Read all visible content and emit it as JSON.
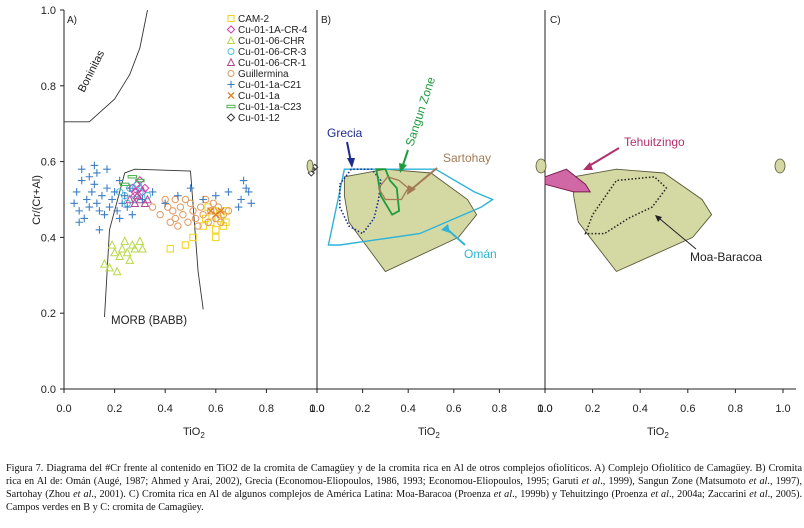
{
  "chart_data": [
    {
      "panel": "A)",
      "type": "scatter",
      "xlabel": "TiO2",
      "ylabel": "Cr/(Cr+Al)",
      "xlim": [
        0.0,
        1.0
      ],
      "ylim": [
        0.0,
        1.0
      ],
      "x_ticks": [
        "0.0",
        "0.2",
        "0.4",
        "0.6",
        "0.8",
        "1.0"
      ],
      "y_ticks": [
        "0.0",
        "0.2",
        "0.4",
        "0.6",
        "0.8",
        "1.0"
      ],
      "field_labels": {
        "boninitas": "Boninitas",
        "morb": "MORB (BABB)"
      },
      "fields": {
        "boninitas": [
          [
            0.0,
            0.705
          ],
          [
            0.1,
            0.705
          ],
          [
            0.2,
            0.765
          ],
          [
            0.26,
            0.83
          ],
          [
            0.3,
            0.9
          ],
          [
            0.33,
            1.0
          ]
        ],
        "morb": [
          [
            0.16,
            0.19
          ],
          [
            0.18,
            0.42
          ],
          [
            0.24,
            0.57
          ],
          [
            0.28,
            0.58
          ],
          [
            0.5,
            0.575
          ],
          [
            0.53,
            0.31
          ],
          [
            0.55,
            0.21
          ]
        ]
      },
      "series": [
        {
          "name": "CAM-2",
          "marker": "square",
          "color": "#f2d219",
          "points": [
            [
              0.42,
              0.37
            ],
            [
              0.48,
              0.38
            ],
            [
              0.51,
              0.4
            ],
            [
              0.55,
              0.43
            ],
            [
              0.56,
              0.45
            ],
            [
              0.58,
              0.44
            ],
            [
              0.6,
              0.42
            ],
            [
              0.61,
              0.45
            ],
            [
              0.62,
              0.46
            ],
            [
              0.63,
              0.43
            ],
            [
              0.64,
              0.44
            ],
            [
              0.59,
              0.47
            ],
            [
              0.57,
              0.48
            ],
            [
              0.64,
              0.47
            ],
            [
              0.6,
              0.4
            ]
          ]
        },
        {
          "name": "Cu-01-1A-CR-4",
          "marker": "diamond",
          "color": "#d63aa8",
          "points": [
            [
              0.27,
              0.53
            ],
            [
              0.28,
              0.52
            ],
            [
              0.29,
              0.54
            ],
            [
              0.3,
              0.53
            ],
            [
              0.31,
              0.52
            ],
            [
              0.32,
              0.53
            ],
            [
              0.3,
              0.55
            ],
            [
              0.28,
              0.51
            ]
          ]
        },
        {
          "name": "Cu-01-06-CHR",
          "marker": "triangle",
          "color": "#b6d945",
          "points": [
            [
              0.16,
              0.33
            ],
            [
              0.18,
              0.32
            ],
            [
              0.2,
              0.36
            ],
            [
              0.22,
              0.35
            ],
            [
              0.23,
              0.37
            ],
            [
              0.25,
              0.36
            ],
            [
              0.27,
              0.38
            ],
            [
              0.28,
              0.37
            ],
            [
              0.3,
              0.39
            ],
            [
              0.21,
              0.31
            ],
            [
              0.19,
              0.38
            ],
            [
              0.26,
              0.34
            ],
            [
              0.31,
              0.37
            ],
            [
              0.24,
              0.39
            ]
          ]
        },
        {
          "name": "Cu-01-06-CR-3",
          "marker": "circle",
          "color": "#4cc0df",
          "points": [
            [
              0.22,
              0.52
            ],
            [
              0.24,
              0.51
            ],
            [
              0.26,
              0.53
            ],
            [
              0.28,
              0.5
            ],
            [
              0.3,
              0.52
            ],
            [
              0.33,
              0.51
            ],
            [
              0.25,
              0.49
            ],
            [
              0.29,
              0.54
            ]
          ]
        },
        {
          "name": "Cu-01-06-CR-1",
          "marker": "triangle",
          "color": "#b3468f",
          "points": [
            [
              0.26,
              0.5
            ],
            [
              0.28,
              0.49
            ],
            [
              0.3,
              0.5
            ],
            [
              0.32,
              0.49
            ],
            [
              0.33,
              0.5
            ],
            [
              0.29,
              0.51
            ]
          ]
        },
        {
          "name": "Guillermina",
          "marker": "circle",
          "color": "#e09860",
          "points": [
            [
              0.43,
              0.47
            ],
            [
              0.44,
              0.45
            ],
            [
              0.46,
              0.48
            ],
            [
              0.47,
              0.46
            ],
            [
              0.49,
              0.44
            ],
            [
              0.51,
              0.47
            ],
            [
              0.52,
              0.45
            ],
            [
              0.54,
              0.48
            ],
            [
              0.55,
              0.46
            ],
            [
              0.57,
              0.44
            ],
            [
              0.58,
              0.47
            ],
            [
              0.6,
              0.45
            ],
            [
              0.61,
              0.48
            ],
            [
              0.63,
              0.46
            ],
            [
              0.65,
              0.47
            ],
            [
              0.41,
              0.48
            ],
            [
              0.42,
              0.44
            ],
            [
              0.45,
              0.43
            ],
            [
              0.5,
              0.49
            ],
            [
              0.56,
              0.5
            ],
            [
              0.59,
              0.49
            ],
            [
              0.4,
              0.5
            ],
            [
              0.44,
              0.5
            ],
            [
              0.38,
              0.46
            ],
            [
              0.35,
              0.48
            ],
            [
              0.62,
              0.44
            ],
            [
              0.53,
              0.43
            ],
            [
              0.48,
              0.5
            ]
          ]
        },
        {
          "name": "Cu-01-1a-C21",
          "marker": "plus",
          "color": "#3f7fc5",
          "points": [
            [
              0.04,
              0.49
            ],
            [
              0.05,
              0.52
            ],
            [
              0.06,
              0.47
            ],
            [
              0.07,
              0.55
            ],
            [
              0.08,
              0.45
            ],
            [
              0.09,
              0.5
            ],
            [
              0.1,
              0.48
            ],
            [
              0.11,
              0.52
            ],
            [
              0.12,
              0.54
            ],
            [
              0.13,
              0.49
            ],
            [
              0.14,
              0.47
            ],
            [
              0.15,
              0.51
            ],
            [
              0.16,
              0.46
            ],
            [
              0.17,
              0.53
            ],
            [
              0.18,
              0.48
            ],
            [
              0.19,
              0.5
            ],
            [
              0.2,
              0.52
            ],
            [
              0.21,
              0.47
            ],
            [
              0.22,
              0.55
            ],
            [
              0.23,
              0.49
            ],
            [
              0.24,
              0.51
            ],
            [
              0.25,
              0.48
            ],
            [
              0.26,
              0.53
            ],
            [
              0.1,
              0.56
            ],
            [
              0.13,
              0.57
            ],
            [
              0.06,
              0.44
            ],
            [
              0.14,
              0.42
            ],
            [
              0.22,
              0.45
            ],
            [
              0.27,
              0.46
            ],
            [
              0.31,
              0.5
            ],
            [
              0.35,
              0.52
            ],
            [
              0.4,
              0.49
            ],
            [
              0.45,
              0.51
            ],
            [
              0.5,
              0.53
            ],
            [
              0.55,
              0.5
            ],
            [
              0.6,
              0.51
            ],
            [
              0.65,
              0.52
            ],
            [
              0.7,
              0.5
            ],
            [
              0.72,
              0.53
            ],
            [
              0.74,
              0.49
            ],
            [
              0.73,
              0.52
            ],
            [
              0.71,
              0.55
            ],
            [
              0.69,
              0.48
            ],
            [
              0.12,
              0.59
            ],
            [
              0.17,
              0.58
            ],
            [
              0.07,
              0.58
            ]
          ]
        },
        {
          "name": "Cu-01-1a",
          "marker": "x",
          "color": "#e0822a",
          "points": [
            [
              0.58,
              0.47
            ],
            [
              0.6,
              0.46
            ],
            [
              0.62,
              0.47
            ]
          ]
        },
        {
          "name": "Cu-01-1a-C23",
          "marker": "dash",
          "color": "#49b04a",
          "points": [
            [
              0.24,
              0.54
            ],
            [
              0.27,
              0.56
            ],
            [
              0.3,
              0.55
            ]
          ]
        },
        {
          "name": "Cu-01-12",
          "marker": "diamond",
          "color": "#333333",
          "points": []
        }
      ]
    },
    {
      "panel": "B)",
      "type": "area",
      "xlabel": "TiO2",
      "xlim": [
        0.0,
        1.0
      ],
      "ylim": [
        0.0,
        1.0
      ],
      "x_ticks": [
        "0.0",
        "0.2",
        "0.4",
        "0.6",
        "0.8",
        "1.0"
      ],
      "camaguey_field": [
        [
          0.12,
          0.56
        ],
        [
          0.3,
          0.58
        ],
        [
          0.5,
          0.57
        ],
        [
          0.66,
          0.5
        ],
        [
          0.7,
          0.46
        ],
        [
          0.62,
          0.4
        ],
        [
          0.3,
          0.31
        ],
        [
          0.14,
          0.44
        ],
        [
          0.12,
          0.51
        ]
      ],
      "oman_field": [
        [
          0.05,
          0.38
        ],
        [
          0.12,
          0.58
        ],
        [
          0.3,
          0.58
        ],
        [
          0.52,
          0.58
        ],
        [
          0.69,
          0.52
        ],
        [
          0.77,
          0.5
        ],
        [
          0.72,
          0.48
        ],
        [
          0.45,
          0.41
        ],
        [
          0.1,
          0.38
        ]
      ],
      "grecia_field": [
        [
          0.1,
          0.54
        ],
        [
          0.15,
          0.58
        ],
        [
          0.24,
          0.58
        ],
        [
          0.28,
          0.55
        ],
        [
          0.27,
          0.5
        ],
        [
          0.25,
          0.45
        ],
        [
          0.2,
          0.41
        ],
        [
          0.14,
          0.43
        ],
        [
          0.1,
          0.48
        ]
      ],
      "sangun_field": [
        [
          0.26,
          0.58
        ],
        [
          0.3,
          0.58
        ],
        [
          0.32,
          0.55
        ],
        [
          0.35,
          0.53
        ],
        [
          0.36,
          0.47
        ],
        [
          0.33,
          0.46
        ],
        [
          0.28,
          0.51
        ]
      ],
      "sartohay_field": [
        [
          0.27,
          0.53
        ],
        [
          0.31,
          0.56
        ],
        [
          0.36,
          0.55
        ],
        [
          0.4,
          0.53
        ],
        [
          0.37,
          0.5
        ],
        [
          0.3,
          0.5
        ]
      ],
      "labels": {
        "grecia": "Grecia",
        "sangun": "Sangun Zone",
        "sartohay": "Sartohay",
        "oman": "Omán"
      },
      "offscale_marks": [
        [
          -0.02,
          0.58
        ],
        [
          -0.01,
          0.585
        ],
        [
          -0.025,
          0.57
        ]
      ],
      "colors": {
        "camaguey": "#d4d8a3",
        "camaguey_edge": "#5a5a3a",
        "oman": "#2fb3d6",
        "grecia": "#1e2b8c",
        "sangun": "#1f9a3f",
        "sartohay": "#a37a55"
      }
    },
    {
      "panel": "C)",
      "type": "area",
      "xlabel": "TiO2",
      "xlim": [
        0.0,
        1.0
      ],
      "ylim": [
        0.0,
        1.0
      ],
      "x_ticks": [
        "0.0",
        "0.2",
        "0.4",
        "0.6",
        "0.8",
        "1.0"
      ],
      "camaguey_field": [
        [
          0.12,
          0.56
        ],
        [
          0.3,
          0.58
        ],
        [
          0.5,
          0.57
        ],
        [
          0.66,
          0.5
        ],
        [
          0.7,
          0.46
        ],
        [
          0.62,
          0.4
        ],
        [
          0.3,
          0.31
        ],
        [
          0.14,
          0.44
        ],
        [
          0.12,
          0.51
        ]
      ],
      "moa_field": [
        [
          0.17,
          0.41
        ],
        [
          0.2,
          0.46
        ],
        [
          0.3,
          0.55
        ],
        [
          0.46,
          0.56
        ],
        [
          0.51,
          0.53
        ],
        [
          0.45,
          0.48
        ],
        [
          0.35,
          0.45
        ],
        [
          0.25,
          0.41
        ]
      ],
      "tehuitzingo_field": [
        [
          0.0,
          0.56
        ],
        [
          0.09,
          0.58
        ],
        [
          0.17,
          0.54
        ],
        [
          0.19,
          0.52
        ],
        [
          0.12,
          0.52
        ],
        [
          0.0,
          0.54
        ]
      ],
      "labels": {
        "moa": "Moa-Baracoa",
        "tehuitzingo": "Tehuitzingo"
      },
      "colors": {
        "camaguey": "#d4d8a3",
        "camaguey_edge": "#5a5a3a",
        "tehuitzingo": "#cf68a5",
        "tehuitzingo_label": "#b0306f"
      }
    }
  ],
  "caption": {
    "p1": "Figura 7. Diagrama del #Cr frente al contenido en TiO2  de la cromita de Camagüey y de la cromita rica en Al de otros complejos ofiolíticos. A) Complejo Ofiolítico de Camagüey. B) Cromita rica en Al de: Omán (Augé, 1987; Ahmed y Arai, 2002), Grecia (Economou-Eliopoulos, 1986, 1993; Economou-Eliopoulos, 1995; Garuti ",
    "etal1": "et al",
    "p2": "., 1999), Sangun Zone (Matsumoto ",
    "etal2": "et al",
    "p3": "., 1997), Sartohay (Zhou ",
    "etal3": "et al",
    "p4": "., 2001). C) Cromita rica en Al de algunos complejos de América Latina: Moa-Baracoa (Proenza ",
    "etal4": "et al",
    "p5": "., 1999b) y Tehuitzingo (Proenza ",
    "etal5": "et al",
    "p6": "., 2004a; Zaccarini ",
    "etal6": "et al",
    "p7": "., 2005). Campos verdes en B y C: cromita de Camagüey."
  }
}
